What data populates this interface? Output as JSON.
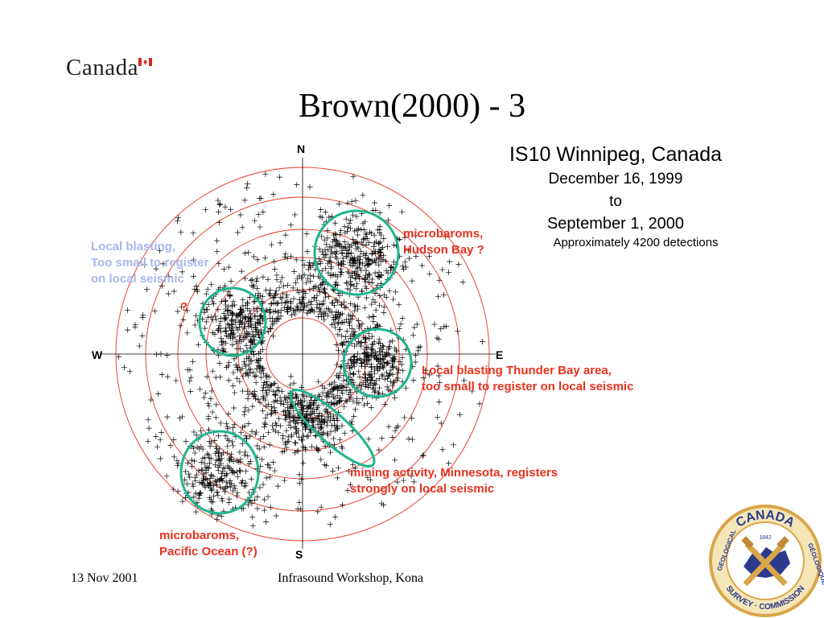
{
  "header": {
    "wordmark": "Canada",
    "title": "Brown(2000) - 3"
  },
  "info": {
    "station": "IS10 Winnipeg, Canada",
    "start_date": "December 16, 1999",
    "to": "to",
    "end_date": "September 1, 2000",
    "detections": "Approximately 4200 detections"
  },
  "compass": {
    "north": "N",
    "south": "S",
    "west": "W",
    "east": "E"
  },
  "annotations": {
    "hudson": [
      "microbaroms,",
      "Hudson Bay ?"
    ],
    "local_blasting": [
      "Local blasting,",
      "Too small to register",
      "on local seismic"
    ],
    "question": "?",
    "thunder_bay": [
      "Local blasting Thunder Bay area,",
      "too small to register on local seismic"
    ],
    "mining": [
      "mining activity, Minnesota, registers",
      "strongly on local seismic"
    ],
    "pacific": [
      "microbaroms,",
      "Pacific Ocean (?)"
    ]
  },
  "footer": {
    "date": "13 Nov 2001",
    "event": "Infrasound Workshop, Kona"
  },
  "seal": {
    "top_text": "CANADA",
    "year": "1842",
    "left_text": "GEOLOGICAL",
    "bottom_text": "SURVEY · COMMISSION",
    "right_text": "GÉOLOGIQUE"
  },
  "colors": {
    "ring": "#e8321e",
    "cluster_ellipse": "#1fb58f",
    "annotation_red": "#e8321e",
    "annotation_blue": "#a9b5ec",
    "seal_gold": "#d9a64a",
    "seal_blue": "#2b3a8c",
    "flag_red": "#d52b1e"
  },
  "icons": {
    "flag": "canada-flag-icon",
    "seal": "gsc-seal-icon"
  }
}
